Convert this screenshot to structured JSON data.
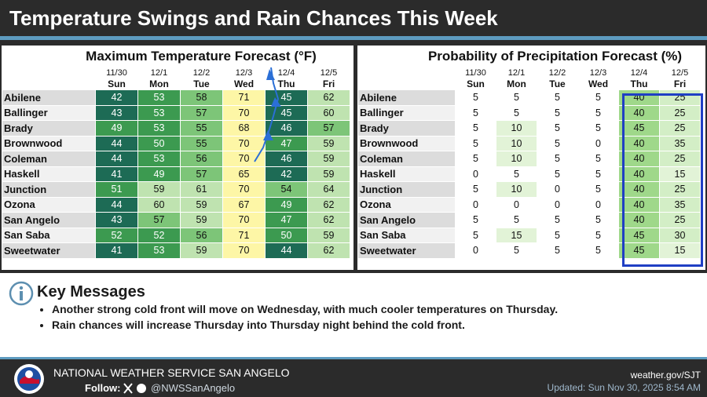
{
  "header": {
    "title": "Temperature Swings and Rain Chances This Week"
  },
  "max_temp_table": {
    "title": "Maximum Temperature Forecast (°F)",
    "columns": [
      {
        "date": "11/30",
        "day": "Sun"
      },
      {
        "date": "12/1",
        "day": "Mon"
      },
      {
        "date": "12/2",
        "day": "Tue"
      },
      {
        "date": "12/3",
        "day": "Wed"
      },
      {
        "date": "12/4",
        "day": "Thu"
      },
      {
        "date": "12/5",
        "day": "Fri"
      }
    ],
    "rows": [
      {
        "label": "Abilene",
        "values": [
          42,
          53,
          58,
          71,
          45,
          62
        ]
      },
      {
        "label": "Ballinger",
        "values": [
          43,
          53,
          57,
          70,
          45,
          60
        ]
      },
      {
        "label": "Brady",
        "values": [
          49,
          53,
          55,
          68,
          46,
          57
        ]
      },
      {
        "label": "Brownwood",
        "values": [
          44,
          50,
          55,
          70,
          47,
          59
        ]
      },
      {
        "label": "Coleman",
        "values": [
          44,
          53,
          56,
          70,
          46,
          59
        ]
      },
      {
        "label": "Haskell",
        "values": [
          41,
          49,
          57,
          65,
          42,
          59
        ]
      },
      {
        "label": "Junction",
        "values": [
          51,
          59,
          61,
          70,
          54,
          64
        ]
      },
      {
        "label": "Ozona",
        "values": [
          44,
          60,
          59,
          67,
          49,
          62
        ]
      },
      {
        "label": "San Angelo",
        "values": [
          43,
          57,
          59,
          70,
          47,
          62
        ]
      },
      {
        "label": "San Saba",
        "values": [
          52,
          52,
          56,
          71,
          50,
          59
        ]
      },
      {
        "label": "Sweetwater",
        "values": [
          41,
          53,
          59,
          70,
          44,
          62
        ]
      }
    ]
  },
  "precip_table": {
    "title": "Probability of Precipitation Forecast (%)",
    "columns": [
      {
        "date": "11/30",
        "day": "Sun"
      },
      {
        "date": "12/1",
        "day": "Mon"
      },
      {
        "date": "12/2",
        "day": "Tue"
      },
      {
        "date": "12/3",
        "day": "Wed"
      },
      {
        "date": "12/4",
        "day": "Thu"
      },
      {
        "date": "12/5",
        "day": "Fri"
      }
    ],
    "rows": [
      {
        "label": "Abilene",
        "values": [
          5,
          5,
          5,
          5,
          40,
          25
        ]
      },
      {
        "label": "Ballinger",
        "values": [
          5,
          5,
          5,
          5,
          40,
          25
        ]
      },
      {
        "label": "Brady",
        "values": [
          5,
          10,
          5,
          5,
          45,
          25
        ]
      },
      {
        "label": "Brownwood",
        "values": [
          5,
          10,
          5,
          0,
          40,
          35
        ]
      },
      {
        "label": "Coleman",
        "values": [
          5,
          10,
          5,
          5,
          40,
          25
        ]
      },
      {
        "label": "Haskell",
        "values": [
          0,
          5,
          5,
          5,
          40,
          15
        ]
      },
      {
        "label": "Junction",
        "values": [
          5,
          10,
          0,
          5,
          40,
          25
        ]
      },
      {
        "label": "Ozona",
        "values": [
          0,
          0,
          0,
          0,
          40,
          35
        ]
      },
      {
        "label": "San Angelo",
        "values": [
          5,
          5,
          5,
          5,
          40,
          25
        ]
      },
      {
        "label": "San Saba",
        "values": [
          5,
          15,
          5,
          5,
          45,
          30
        ]
      },
      {
        "label": "Sweetwater",
        "values": [
          0,
          5,
          5,
          5,
          45,
          15
        ]
      }
    ]
  },
  "key_messages": {
    "title": "Key Messages",
    "items": [
      "Another strong cold front will move on Wednesday, with much cooler temperatures on Thursday.",
      "Rain chances will increase Thursday into Thursday night behind the cold front."
    ]
  },
  "footer": {
    "office": "NATIONAL WEATHER SERVICE SAN ANGELO",
    "follow": "Follow:",
    "handle": "@NWSSanAngelo",
    "website": "weather.gov/SJT",
    "updated": "Updated: Sun Nov 30, 2025 8:54 AM"
  }
}
